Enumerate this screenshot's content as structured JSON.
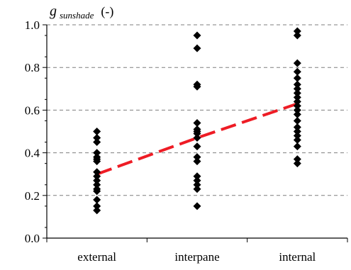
{
  "chart_data": {
    "type": "scatter",
    "categories": [
      "external",
      "interpane",
      "internal"
    ],
    "ylabel_symbol": "g",
    "ylabel_subscript": "sunshade",
    "ylabel_unit": "(-)",
    "ylim": [
      0.0,
      1.0
    ],
    "yticks": [
      "0.0",
      "0.2",
      "0.4",
      "0.6",
      "0.8",
      "1.0"
    ],
    "grid": "horizontal dashed",
    "series": [
      {
        "category": "external",
        "values": [
          0.5,
          0.47,
          0.45,
          0.4,
          0.38,
          0.37,
          0.36,
          0.31,
          0.29,
          0.27,
          0.25,
          0.23,
          0.22,
          0.18,
          0.15,
          0.13
        ]
      },
      {
        "category": "interpane",
        "values": [
          0.95,
          0.89,
          0.72,
          0.71,
          0.54,
          0.51,
          0.5,
          0.49,
          0.47,
          0.43,
          0.38,
          0.36,
          0.29,
          0.27,
          0.25,
          0.23,
          0.15
        ]
      },
      {
        "category": "internal",
        "values": [
          0.97,
          0.95,
          0.82,
          0.78,
          0.75,
          0.72,
          0.7,
          0.68,
          0.66,
          0.64,
          0.62,
          0.6,
          0.58,
          0.55,
          0.52,
          0.5,
          0.48,
          0.46,
          0.43,
          0.37,
          0.35
        ]
      }
    ],
    "trend": {
      "style": "red dashed",
      "color": "#ee1c25",
      "points": [
        [
          1,
          0.3
        ],
        [
          2,
          0.47
        ],
        [
          3,
          0.63
        ]
      ]
    }
  }
}
